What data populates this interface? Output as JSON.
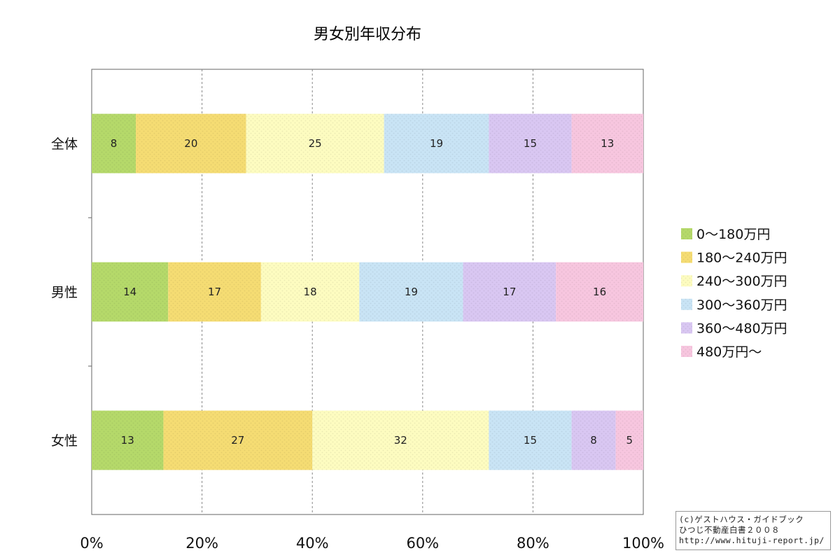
{
  "chart_data": {
    "type": "bar",
    "orientation": "horizontal",
    "stacked": true,
    "percent_stacked": true,
    "title": "男女別年収分布",
    "categories": [
      "全体",
      "男性",
      "女性"
    ],
    "series": [
      {
        "name": "0〜180万円",
        "values": [
          8,
          14,
          13
        ],
        "color": "#b5d96a"
      },
      {
        "name": "180〜240万円",
        "values": [
          20,
          17,
          27
        ],
        "color": "#f5dc73"
      },
      {
        "name": "240〜300万円",
        "values": [
          25,
          18,
          32
        ],
        "color": "#fdfcc0"
      },
      {
        "name": "300〜360万円",
        "values": [
          19,
          19,
          15
        ],
        "color": "#c9e4f5"
      },
      {
        "name": "360〜480万円",
        "values": [
          15,
          17,
          8
        ],
        "color": "#d9c7f2"
      },
      {
        "name": "480万円〜",
        "values": [
          13,
          16,
          5
        ],
        "color": "#f7c6df"
      }
    ],
    "x_ticks": [
      "0%",
      "20%",
      "40%",
      "60%",
      "80%",
      "100%"
    ],
    "xlim": [
      0,
      100
    ],
    "grid": true,
    "legend_position": "right"
  },
  "credit": {
    "line1": "(c)ゲストハウス・ガイドブック",
    "line2": "ひつじ不動産白書２００８",
    "line3": "http://www.hituji-report.jp/"
  }
}
